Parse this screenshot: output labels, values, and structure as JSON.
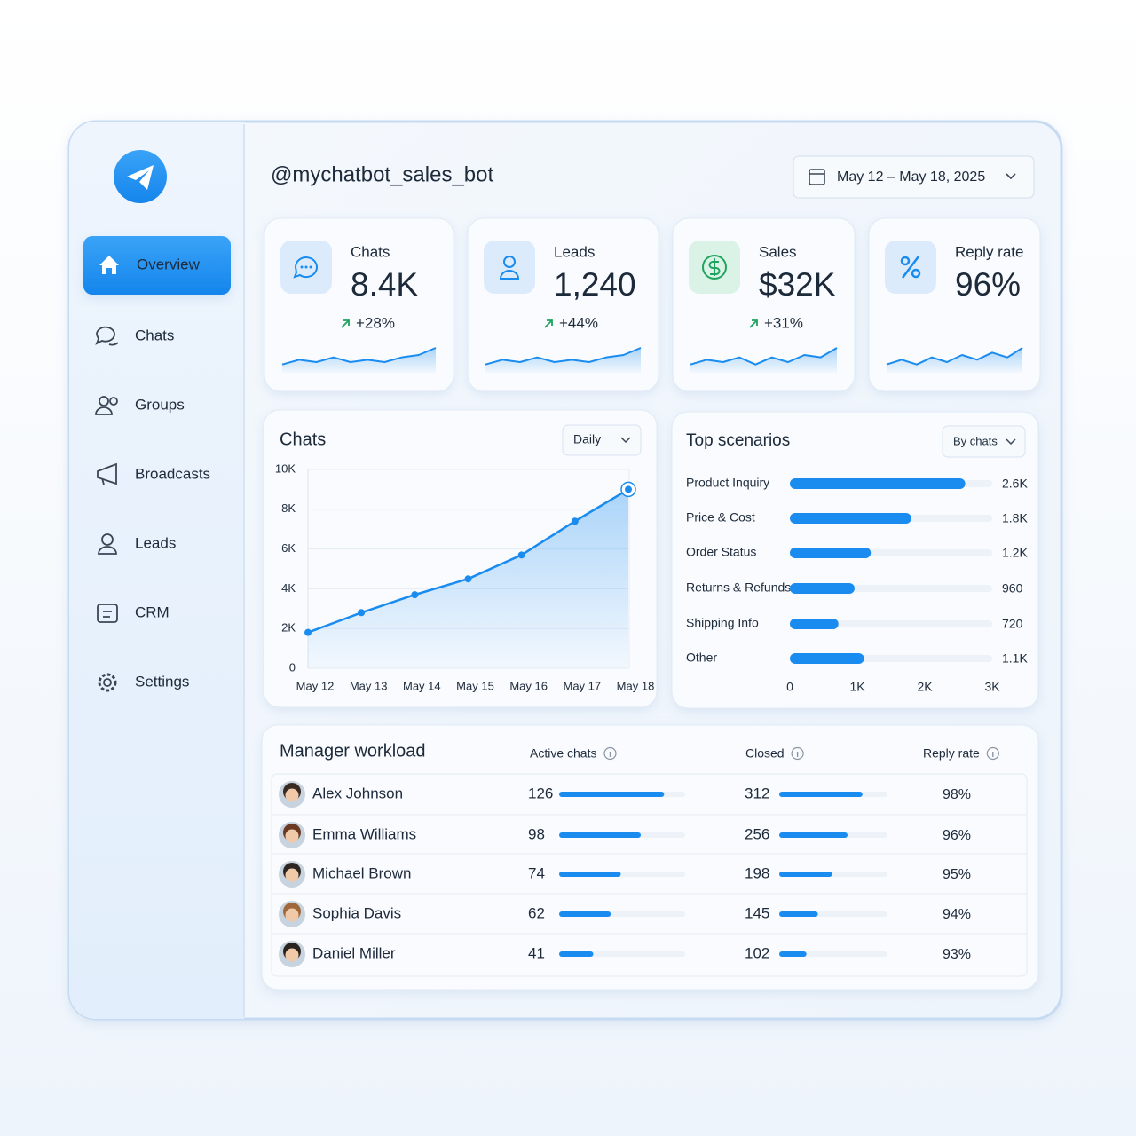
{
  "header": {
    "title": "@mychatbot_sales_bot",
    "date_range": "May 12 – May 18, 2025"
  },
  "sidebar": {
    "items": [
      "Overview",
      "Chats",
      "Groups",
      "Broadcasts",
      "Leads",
      "CRM",
      "Settings"
    ],
    "active": 0
  },
  "kpis": [
    {
      "label": "Chats",
      "value": "8.4K",
      "change": "+28%",
      "trend": [
        2,
        4,
        3,
        5,
        3,
        4,
        3,
        5,
        6,
        9
      ]
    },
    {
      "label": "Leads",
      "value": "1,240",
      "change": "+44%",
      "trend": [
        2,
        4,
        3,
        5,
        3,
        4,
        3,
        5,
        6,
        9
      ]
    },
    {
      "label": "Sales",
      "value": "$32K",
      "change": "+31%",
      "trend": [
        2,
        4,
        3,
        5,
        2,
        5,
        3,
        6,
        5,
        9
      ]
    },
    {
      "label": "Reply rate",
      "value": "96%",
      "trend": [
        2,
        4,
        2,
        5,
        3,
        6,
        4,
        7,
        5,
        9
      ]
    }
  ],
  "chart_data": [
    {
      "type": "line",
      "title": "Chats",
      "period": "Daily",
      "categories": [
        "May 12",
        "May 13",
        "May 14",
        "May 15",
        "May 16",
        "May 17",
        "May 18"
      ],
      "values": [
        1800,
        2800,
        3700,
        4500,
        5700,
        7400,
        9000
      ],
      "color": "#1a8cf0",
      "ylim": [
        0,
        10000
      ],
      "yticks": [
        0,
        {
          "value": 2000,
          "label": "2K"
        },
        {
          "value": 4000,
          "label": "4K"
        },
        {
          "value": 6000,
          "label": "6K"
        },
        {
          "value": 8000,
          "label": "8K"
        },
        {
          "value": 10000,
          "label": "10K"
        }
      ],
      "grid": true
    },
    {
      "type": "bar",
      "orientation": "horizontal",
      "title": "Top scenarios",
      "sort_by": "By chats",
      "categories": [
        "Product Inquiry",
        "Price & Cost",
        "Order Status",
        "Returns & Refunds",
        "Shipping Info",
        "Other"
      ],
      "values": [
        2600,
        1800,
        1200,
        960,
        720,
        1100
      ],
      "value_labels": [
        "2.6K",
        "1.8K",
        "1.2K",
        "960",
        "720",
        "1.1K"
      ],
      "color": "#1a8cf0",
      "xlim": [
        0,
        3000
      ],
      "xticks": [
        0,
        {
          "value": 1000,
          "label": "1K"
        },
        {
          "value": 2000,
          "label": "2K"
        },
        {
          "value": 3000,
          "label": "3K"
        }
      ]
    }
  ],
  "workload": {
    "title": "Manager workload",
    "columns": [
      "Active chats",
      "Closed",
      "Reply rate"
    ],
    "rows": [
      [
        "Alex Johnson",
        126,
        312,
        "98%"
      ],
      [
        "Emma Williams",
        98,
        256,
        "96%"
      ],
      [
        "Michael Brown",
        74,
        198,
        "95%"
      ],
      [
        "Sophia Davis",
        62,
        145,
        "94%"
      ],
      [
        "Daniel Miller",
        41,
        102,
        "93%"
      ]
    ]
  }
}
